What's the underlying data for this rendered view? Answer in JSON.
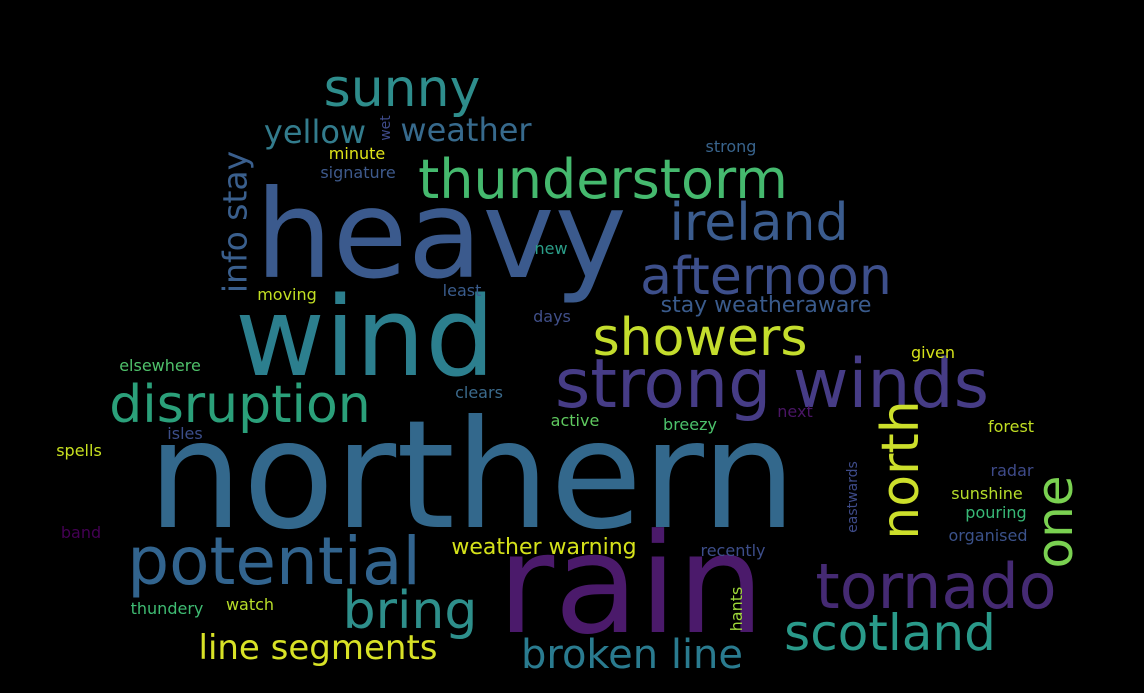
{
  "words": [
    {
      "text": "northern",
      "color": "#33688c"
    },
    {
      "text": "heavy",
      "color": "#3b5a8d"
    },
    {
      "text": "wind",
      "color": "#2c7f8e"
    },
    {
      "text": "rain",
      "color": "#4b1a6b"
    },
    {
      "text": "strong winds",
      "color": "#463c86"
    },
    {
      "text": "thunderstorm",
      "color": "#45b96e"
    },
    {
      "text": "sunny",
      "color": "#2e8d8c"
    },
    {
      "text": "ireland",
      "color": "#3b5c8e"
    },
    {
      "text": "afternoon",
      "color": "#3d4f8b"
    },
    {
      "text": "showers",
      "color": "#c4dd2d"
    },
    {
      "text": "disruption",
      "color": "#2ba07a"
    },
    {
      "text": "potential",
      "color": "#32648e"
    },
    {
      "text": "tornado",
      "color": "#452a73"
    },
    {
      "text": "bring",
      "color": "#2e8f8b"
    },
    {
      "text": "scotland",
      "color": "#2a9a8a"
    },
    {
      "text": "broken line",
      "color": "#2a7b8f"
    },
    {
      "text": "line segments",
      "color": "#d8e226"
    },
    {
      "text": "north",
      "color": "#ccdf2b"
    },
    {
      "text": "one",
      "color": "#7ad151"
    },
    {
      "text": "info stay",
      "color": "#3a5f8d"
    },
    {
      "text": "yellow",
      "color": "#337c8d"
    },
    {
      "text": "weather",
      "color": "#376a8d"
    },
    {
      "text": "wet",
      "color": "#3e4a89"
    },
    {
      "text": "stay weatheraware",
      "color": "#3a5b8c"
    },
    {
      "text": "weather warning",
      "color": "#d5e21a"
    },
    {
      "text": "minute",
      "color": "#dfe318"
    },
    {
      "text": "signature",
      "color": "#3e5a8c"
    },
    {
      "text": "strong",
      "color": "#39648d"
    },
    {
      "text": "new",
      "color": "#2b9e89"
    },
    {
      "text": "moving",
      "color": "#c2df23"
    },
    {
      "text": "least",
      "color": "#3a5c8c"
    },
    {
      "text": "days",
      "color": "#404f89"
    },
    {
      "text": "elsewhere",
      "color": "#4fc16b"
    },
    {
      "text": "clears",
      "color": "#3b6a8c"
    },
    {
      "text": "given",
      "color": "#d5e21a"
    },
    {
      "text": "next",
      "color": "#4a1565"
    },
    {
      "text": "active",
      "color": "#5fc95f"
    },
    {
      "text": "breezy",
      "color": "#4cc26c"
    },
    {
      "text": "isles",
      "color": "#3c4e8a"
    },
    {
      "text": "spells",
      "color": "#c8e020"
    },
    {
      "text": "forest",
      "color": "#c2df23"
    },
    {
      "text": "eastwards",
      "color": "#3e4b89"
    },
    {
      "text": "radar",
      "color": "#3e4a89"
    },
    {
      "text": "sunshine",
      "color": "#b6de2b"
    },
    {
      "text": "pouring",
      "color": "#38b977"
    },
    {
      "text": "organised",
      "color": "#3b528b"
    },
    {
      "text": "band",
      "color": "#440154"
    },
    {
      "text": "recently",
      "color": "#3d4e8a"
    },
    {
      "text": "thundery",
      "color": "#3fbc73"
    },
    {
      "text": "watch",
      "color": "#b8de29"
    },
    {
      "text": "hants",
      "color": "#9fda3a"
    }
  ]
}
